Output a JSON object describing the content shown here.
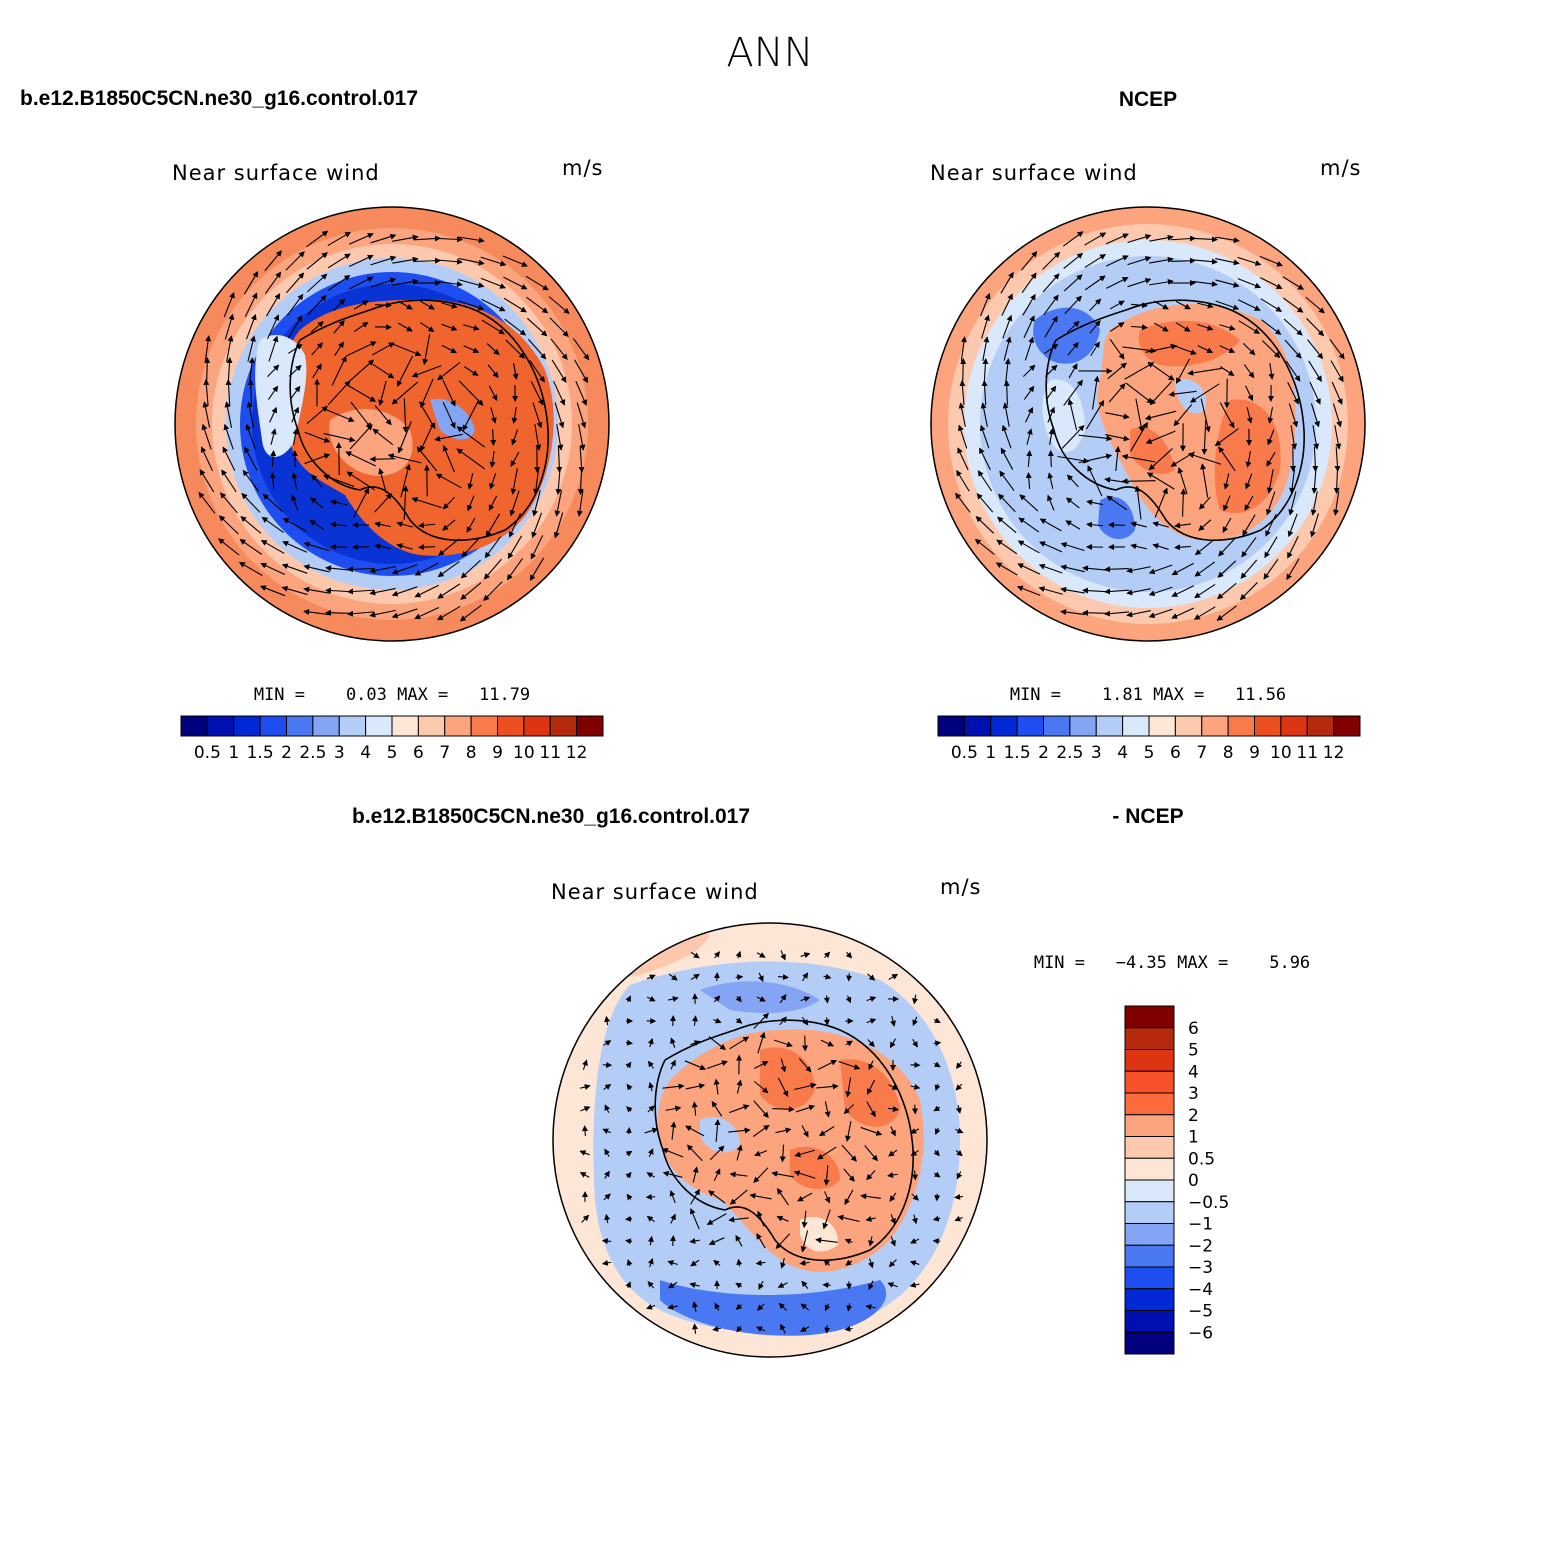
{
  "page_title": "ANN",
  "panels": [
    {
      "id": "model",
      "header_left": "b.e12.B1850C5CN.ne30_g16.control.017",
      "header_right": "NCEP",
      "title": "Near surface wind",
      "units": "m/s",
      "stats": "MIN =    0.03 MAX =   11.79",
      "field_pattern": "model",
      "colorbar": {
        "orientation": "horizontal",
        "labels": [
          "0.5",
          "1",
          "1.5",
          "2",
          "2.5",
          "3",
          "4",
          "5",
          "6",
          "7",
          "8",
          "9",
          "10",
          "11",
          "12"
        ],
        "colors": [
          "#00007f",
          "#0010b0",
          "#0028d4",
          "#1e4ef0",
          "#4a78f2",
          "#83a5f4",
          "#b4cdf7",
          "#d9e8fb",
          "#fde6d6",
          "#fcc9ae",
          "#fba47e",
          "#f97a4b",
          "#ed5020",
          "#dd3412",
          "#b52a0c",
          "#800000"
        ]
      }
    },
    {
      "id": "obs",
      "header_left": "",
      "header_right": "NCEP",
      "title": "Near surface wind",
      "units": "m/s",
      "stats": "MIN =    1.81 MAX =   11.56",
      "field_pattern": "obs",
      "colorbar": {
        "orientation": "horizontal",
        "labels": [
          "0.5",
          "1",
          "1.5",
          "2",
          "2.5",
          "3",
          "4",
          "5",
          "6",
          "7",
          "8",
          "9",
          "10",
          "11",
          "12"
        ],
        "colors": [
          "#00007f",
          "#0010b0",
          "#0028d4",
          "#1e4ef0",
          "#4a78f2",
          "#83a5f4",
          "#b4cdf7",
          "#d9e8fb",
          "#fde6d6",
          "#fcc9ae",
          "#fba47e",
          "#f97a4b",
          "#ed5020",
          "#dd3412",
          "#b52a0c",
          "#800000"
        ]
      }
    },
    {
      "id": "diff",
      "header_left": "b.e12.B1850C5CN.ne30_g16.control.017",
      "header_right": "- NCEP",
      "title": "Near surface wind",
      "units": "m/s",
      "stats": "MIN =   −4.35 MAX =    5.96",
      "field_pattern": "diff",
      "colorbar": {
        "orientation": "vertical",
        "labels": [
          "6",
          "5",
          "4",
          "3",
          "2",
          "1",
          "0.5",
          "0",
          "−0.5",
          "−1",
          "−2",
          "−3",
          "−4",
          "−5",
          "−6"
        ],
        "colors": [
          "#800000",
          "#b52a0c",
          "#dd3412",
          "#f9522a",
          "#fb6b3e",
          "#fba47e",
          "#fcc9ae",
          "#fde6d6",
          "#d9e8fb",
          "#b4cdf7",
          "#83a5f4",
          "#4a78f2",
          "#1e4ef0",
          "#0028d4",
          "#0010b0",
          "#00007f"
        ]
      }
    }
  ]
}
